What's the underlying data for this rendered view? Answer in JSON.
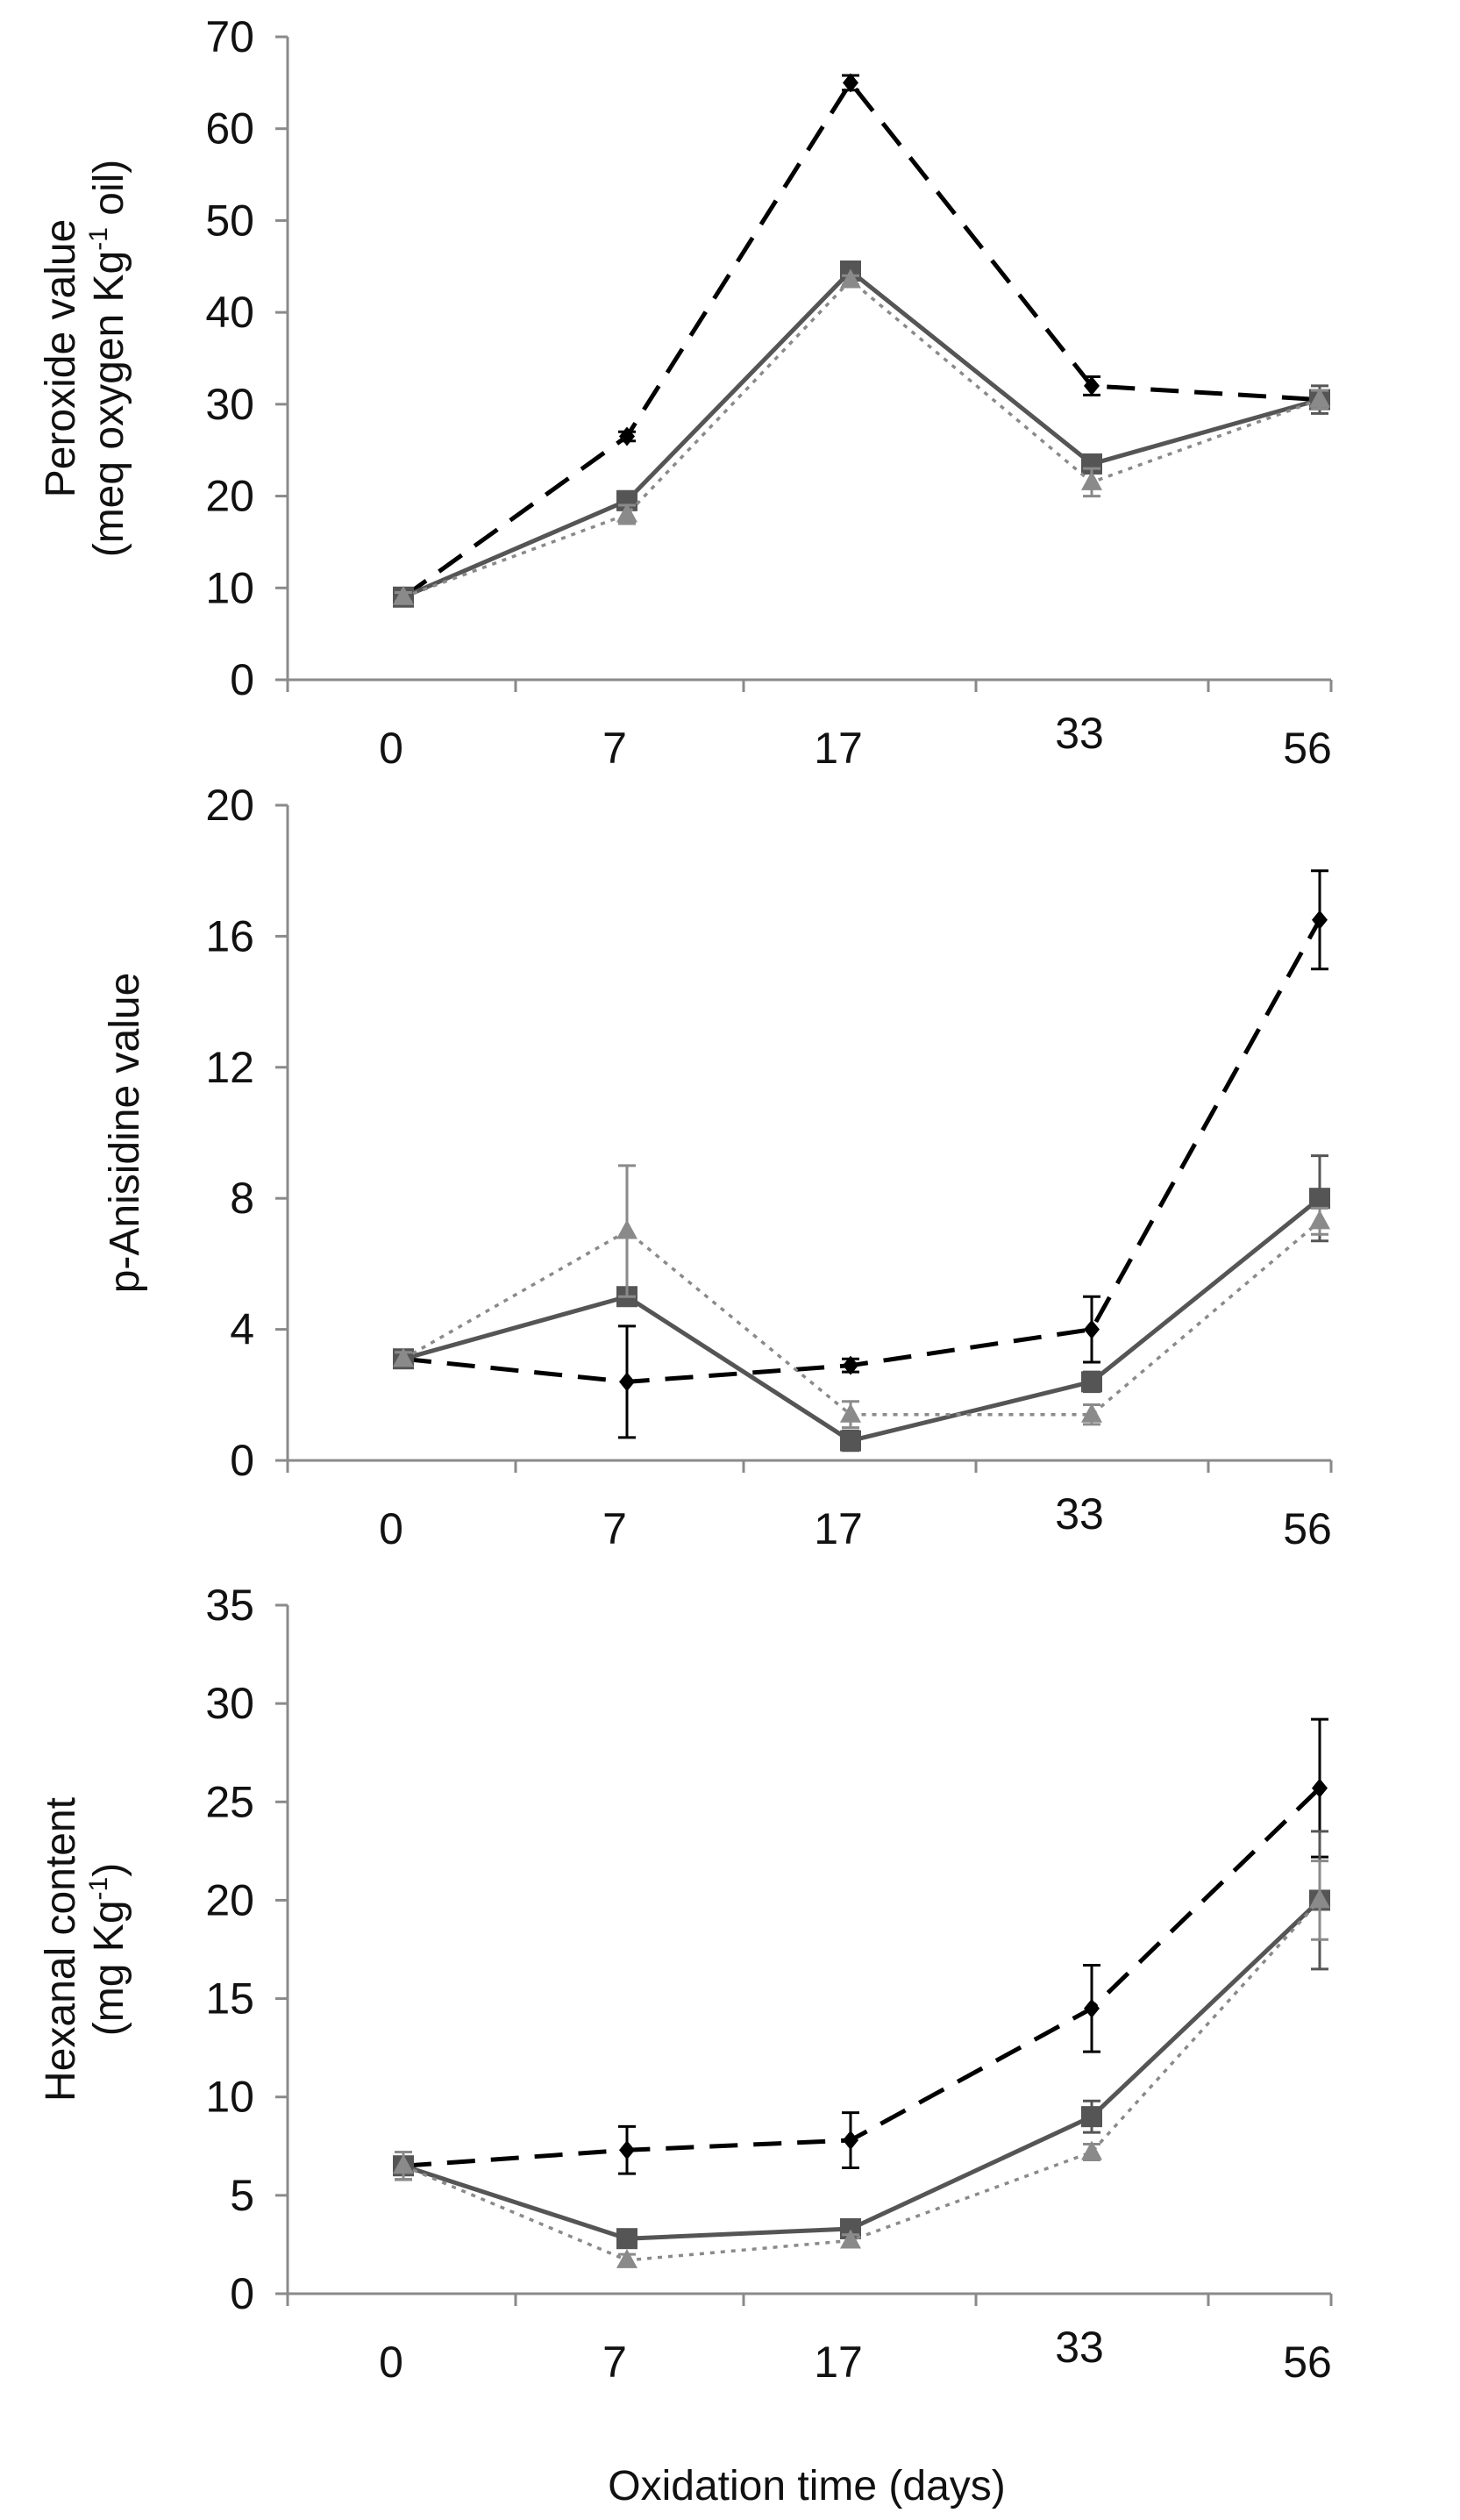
{
  "figure": {
    "xlabel": "Oxidation time (days)"
  },
  "chart_data": [
    {
      "type": "line",
      "ylabel_lines": [
        "Peroxide value",
        "(meq oxygen Kg",
        "-1",
        " oil)"
      ],
      "ylim": [
        0,
        70
      ],
      "yticks": [
        0,
        10,
        20,
        30,
        40,
        50,
        60,
        70
      ],
      "categories": [
        "0",
        "7",
        "17",
        "33",
        "56"
      ],
      "series": [
        {
          "name": "series-diamond-dashed",
          "marker": "diamond",
          "style": "dashed",
          "color": "#000000",
          "values": [
            9,
            26.5,
            65,
            32,
            30.5
          ],
          "errors": [
            0.5,
            0.5,
            0.8,
            1,
            1
          ]
        },
        {
          "name": "series-square-solid",
          "marker": "square",
          "style": "solid",
          "color": "#555555",
          "values": [
            9,
            19.5,
            44.5,
            23.5,
            30.5
          ],
          "errors": [
            0.5,
            1,
            1,
            1,
            1.5
          ]
        },
        {
          "name": "series-triangle-dotted",
          "marker": "triangle",
          "style": "dotted",
          "color": "#8a8a8a",
          "values": [
            9,
            18,
            43.5,
            21.5,
            30.5
          ],
          "errors": [
            0.5,
            1,
            0.5,
            1.5,
            1
          ]
        }
      ]
    },
    {
      "type": "line",
      "ylabel_lines": [
        "p-Anisidine value"
      ],
      "ylim": [
        0,
        20
      ],
      "yticks": [
        0,
        4,
        8,
        12,
        16,
        20
      ],
      "categories": [
        "0",
        "7",
        "17",
        "33",
        "56"
      ],
      "series": [
        {
          "name": "series-diamond-dashed",
          "marker": "diamond",
          "style": "dashed",
          "color": "#000000",
          "values": [
            3.1,
            2.4,
            2.9,
            4,
            16.5
          ],
          "errors": [
            0.2,
            1.7,
            0.2,
            1,
            1.5
          ]
        },
        {
          "name": "series-square-solid",
          "marker": "square",
          "style": "solid",
          "color": "#555555",
          "values": [
            3.1,
            5,
            0.6,
            2.4,
            8
          ],
          "errors": [
            0.2,
            0.2,
            0.3,
            0.3,
            1.3
          ]
        },
        {
          "name": "series-triangle-dotted",
          "marker": "triangle",
          "style": "dotted",
          "color": "#8a8a8a",
          "values": [
            3.1,
            7,
            1.4,
            1.4,
            7.3
          ],
          "errors": [
            0.2,
            2,
            0.4,
            0.3,
            0.4
          ]
        }
      ]
    },
    {
      "type": "line",
      "ylabel_lines": [
        "Hexanal content",
        "(mg Kg",
        "-1",
        ")"
      ],
      "ylim": [
        0,
        35
      ],
      "yticks": [
        0,
        5,
        10,
        15,
        20,
        25,
        30,
        35
      ],
      "categories": [
        "0",
        "7",
        "17",
        "33",
        "56"
      ],
      "series": [
        {
          "name": "series-diamond-dashed",
          "marker": "diamond",
          "style": "dashed",
          "color": "#000000",
          "values": [
            6.5,
            7.3,
            7.8,
            14.5,
            25.7
          ],
          "errors": [
            0.7,
            1.2,
            1.4,
            2.2,
            3.5
          ]
        },
        {
          "name": "series-square-solid",
          "marker": "square",
          "style": "solid",
          "color": "#555555",
          "values": [
            6.5,
            2.8,
            3.3,
            9,
            20
          ],
          "errors": [
            0.7,
            0.3,
            0.3,
            0.8,
            3.5
          ]
        },
        {
          "name": "series-triangle-dotted",
          "marker": "triangle",
          "style": "dotted",
          "color": "#8a8a8a",
          "values": [
            6.5,
            1.7,
            2.7,
            7.2,
            20
          ],
          "errors": [
            0.7,
            0.3,
            0.3,
            0.4,
            2
          ]
        }
      ]
    }
  ]
}
